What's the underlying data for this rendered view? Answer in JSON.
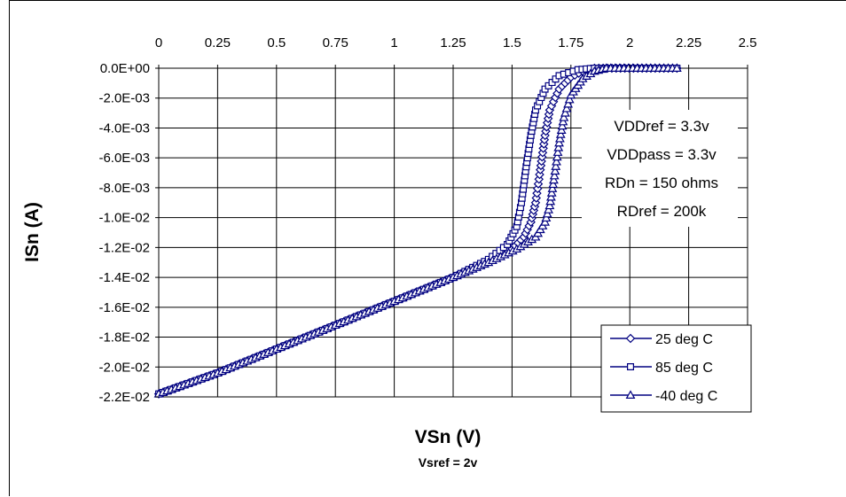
{
  "chart_data": {
    "type": "line",
    "xlabel": "VSn (V)",
    "subtitle": "Vsref = 2v",
    "ylabel": "ISn (A)",
    "xlim": [
      0,
      2.5
    ],
    "ylim": [
      -0.022,
      0
    ],
    "x_ticks": [
      "0",
      "0.25",
      "0.5",
      "0.75",
      "1",
      "1.25",
      "1.5",
      "1.75",
      "2",
      "2.25",
      "2.5"
    ],
    "y_ticks": [
      "0.0E+00",
      "-2.0E-03",
      "-4.0E-03",
      "-6.0E-03",
      "-8.0E-03",
      "-1.0E-02",
      "-1.2E-02",
      "-1.4E-02",
      "-1.6E-02",
      "-1.8E-02",
      "-2.0E-02",
      "-2.2E-02"
    ],
    "grid": true,
    "x_axis_position": "top",
    "annotations": [
      "VDDref = 3.3v",
      "VDDpass = 3.3v",
      "RDn = 150 ohms",
      "RDref = 200k"
    ],
    "legend_position": "bottom-right",
    "color": "#000080",
    "series": [
      {
        "name": "25 deg C",
        "marker": "diamond",
        "points": [
          [
            0,
            -0.0218
          ],
          [
            0.25,
            -0.0204
          ],
          [
            0.5,
            -0.0188
          ],
          [
            0.75,
            -0.0172
          ],
          [
            1.0,
            -0.0156
          ],
          [
            1.25,
            -0.014
          ],
          [
            1.4,
            -0.0129
          ],
          [
            1.5,
            -0.0121
          ],
          [
            1.55,
            -0.0113
          ],
          [
            1.58,
            -0.0103
          ],
          [
            1.6,
            -0.009
          ],
          [
            1.62,
            -0.0068
          ],
          [
            1.64,
            -0.0045
          ],
          [
            1.66,
            -0.0028
          ],
          [
            1.7,
            -0.0014
          ],
          [
            1.75,
            -0.0006
          ],
          [
            1.8,
            -0.0002
          ],
          [
            1.85,
            0
          ],
          [
            2.2,
            0
          ]
        ]
      },
      {
        "name": "85 deg C",
        "marker": "square",
        "points": [
          [
            0,
            -0.0218
          ],
          [
            0.25,
            -0.0204
          ],
          [
            0.5,
            -0.0188
          ],
          [
            0.75,
            -0.0172
          ],
          [
            1.0,
            -0.0156
          ],
          [
            1.25,
            -0.014
          ],
          [
            1.4,
            -0.0128
          ],
          [
            1.48,
            -0.0118
          ],
          [
            1.52,
            -0.0106
          ],
          [
            1.54,
            -0.009
          ],
          [
            1.56,
            -0.0066
          ],
          [
            1.58,
            -0.0045
          ],
          [
            1.6,
            -0.0028
          ],
          [
            1.64,
            -0.0014
          ],
          [
            1.7,
            -0.0005
          ],
          [
            1.78,
            -0.0001
          ],
          [
            1.85,
            0
          ],
          [
            2.2,
            0
          ]
        ]
      },
      {
        "name": "-40 deg C",
        "marker": "triangle",
        "points": [
          [
            0,
            -0.0218
          ],
          [
            0.25,
            -0.0204
          ],
          [
            0.5,
            -0.0188
          ],
          [
            0.75,
            -0.0172
          ],
          [
            1.0,
            -0.0156
          ],
          [
            1.25,
            -0.014
          ],
          [
            1.4,
            -0.013
          ],
          [
            1.52,
            -0.0121
          ],
          [
            1.6,
            -0.0113
          ],
          [
            1.64,
            -0.0103
          ],
          [
            1.66,
            -0.0092
          ],
          [
            1.68,
            -0.0072
          ],
          [
            1.7,
            -0.005
          ],
          [
            1.72,
            -0.0033
          ],
          [
            1.75,
            -0.0018
          ],
          [
            1.8,
            -0.0007
          ],
          [
            1.85,
            -0.0002
          ],
          [
            1.9,
            0
          ],
          [
            2.2,
            0
          ]
        ]
      }
    ]
  }
}
